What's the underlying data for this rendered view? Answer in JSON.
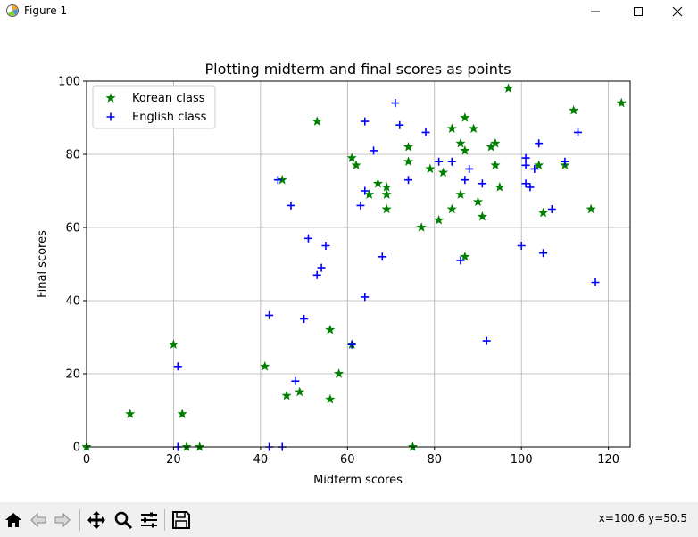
{
  "window": {
    "title": "Figure 1",
    "icons": {
      "app": "matplotlib-figure-icon",
      "minimize": "minimize-icon",
      "maximize": "maximize-icon",
      "close": "close-icon"
    }
  },
  "toolbar": {
    "buttons": [
      "home-icon",
      "back-arrow-icon",
      "forward-arrow-icon",
      "pan-move-icon",
      "zoom-magnifier-icon",
      "configure-subplots-icon",
      "save-floppy-icon"
    ],
    "coordinates": "x=100.6 y=50.5"
  },
  "chart_data": {
    "type": "scatter",
    "title": "Plotting midterm and final scores as points",
    "xlabel": "Midterm scores",
    "ylabel": "Final scores",
    "xlim": [
      0,
      125
    ],
    "ylim": [
      0,
      100
    ],
    "xticks": [
      0,
      20,
      40,
      60,
      80,
      100,
      120
    ],
    "yticks": [
      0,
      20,
      40,
      60,
      80,
      100
    ],
    "grid": true,
    "legend_position": "upper-left",
    "series": [
      {
        "name": "Korean class",
        "marker": "star",
        "color": "#008000",
        "points": [
          [
            0,
            0
          ],
          [
            10,
            9
          ],
          [
            20,
            28
          ],
          [
            22,
            9
          ],
          [
            23,
            0
          ],
          [
            26,
            0
          ],
          [
            41,
            22
          ],
          [
            45,
            73
          ],
          [
            46,
            14
          ],
          [
            49,
            15
          ],
          [
            53,
            89
          ],
          [
            56,
            13
          ],
          [
            56,
            32
          ],
          [
            58,
            20
          ],
          [
            61,
            79
          ],
          [
            61,
            28
          ],
          [
            62,
            77
          ],
          [
            65,
            69
          ],
          [
            67,
            72
          ],
          [
            69,
            71
          ],
          [
            69,
            69
          ],
          [
            69,
            65
          ],
          [
            74,
            82
          ],
          [
            74,
            78
          ],
          [
            75,
            0
          ],
          [
            77,
            60
          ],
          [
            79,
            76
          ],
          [
            81,
            62
          ],
          [
            82,
            75
          ],
          [
            84,
            87
          ],
          [
            84,
            65
          ],
          [
            86,
            83
          ],
          [
            86,
            69
          ],
          [
            87,
            90
          ],
          [
            87,
            81
          ],
          [
            87,
            52
          ],
          [
            89,
            87
          ],
          [
            90,
            67
          ],
          [
            91,
            63
          ],
          [
            93,
            82
          ],
          [
            94,
            83
          ],
          [
            94,
            77
          ],
          [
            95,
            71
          ],
          [
            97,
            98
          ],
          [
            104,
            77
          ],
          [
            105,
            64
          ],
          [
            110,
            77
          ],
          [
            112,
            92
          ],
          [
            116,
            65
          ],
          [
            123,
            94
          ]
        ]
      },
      {
        "name": "English class",
        "marker": "plus",
        "color": "#0000ff",
        "points": [
          [
            21,
            22
          ],
          [
            21,
            0
          ],
          [
            42,
            36
          ],
          [
            42,
            0
          ],
          [
            44,
            73
          ],
          [
            45,
            0
          ],
          [
            47,
            66
          ],
          [
            48,
            18
          ],
          [
            50,
            35
          ],
          [
            51,
            57
          ],
          [
            53,
            47
          ],
          [
            54,
            49
          ],
          [
            55,
            55
          ],
          [
            61,
            28
          ],
          [
            63,
            66
          ],
          [
            64,
            89
          ],
          [
            64,
            70
          ],
          [
            64,
            41
          ],
          [
            66,
            81
          ],
          [
            68,
            52
          ],
          [
            71,
            94
          ],
          [
            72,
            88
          ],
          [
            74,
            73
          ],
          [
            78,
            86
          ],
          [
            81,
            78
          ],
          [
            84,
            78
          ],
          [
            86,
            51
          ],
          [
            87,
            73
          ],
          [
            88,
            76
          ],
          [
            91,
            72
          ],
          [
            92,
            29
          ],
          [
            100,
            55
          ],
          [
            101,
            79
          ],
          [
            101,
            77
          ],
          [
            101,
            72
          ],
          [
            102,
            71
          ],
          [
            103,
            76
          ],
          [
            104,
            83
          ],
          [
            105,
            53
          ],
          [
            107,
            65
          ],
          [
            110,
            78
          ],
          [
            113,
            86
          ],
          [
            117,
            45
          ]
        ]
      }
    ]
  }
}
